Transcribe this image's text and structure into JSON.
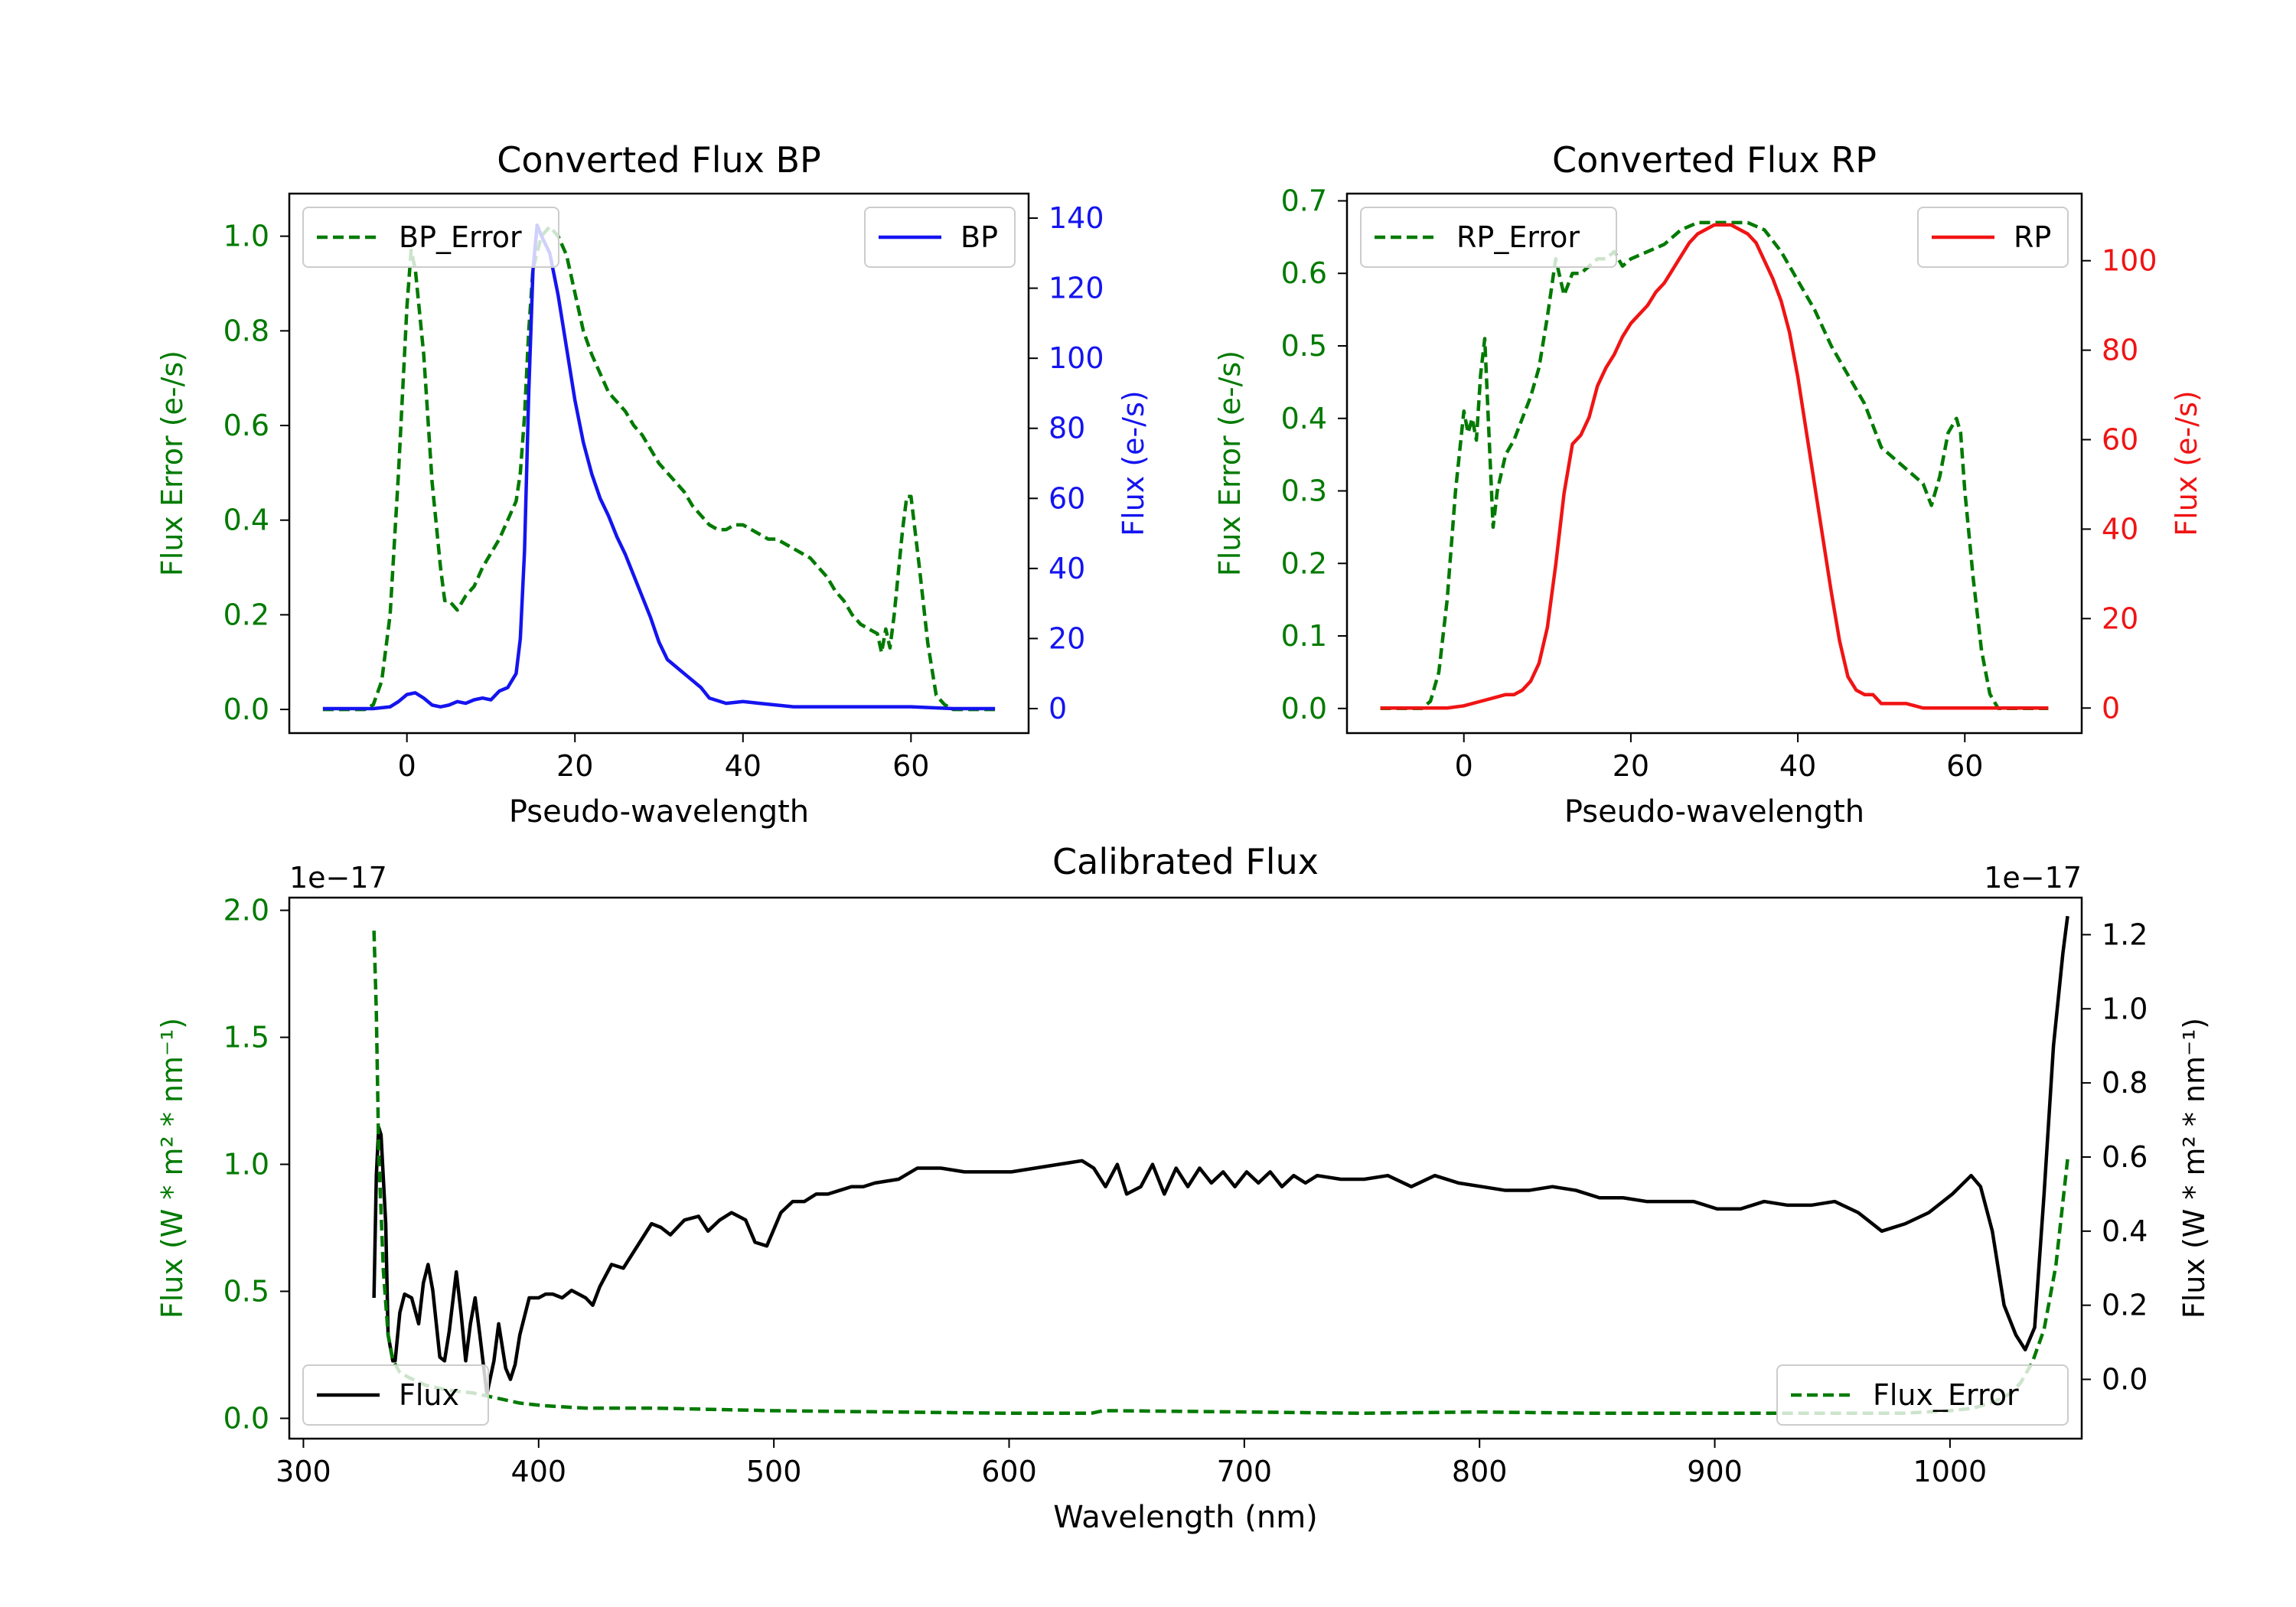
{
  "colors": {
    "green": "#007a00",
    "blue": "#1414f0",
    "red": "#f01414",
    "black": "#000000"
  },
  "chart_data": [
    {
      "id": "bp",
      "type": "line",
      "title": "Converted Flux BP",
      "xlabel": "Pseudo-wavelength",
      "xlim": [
        -14,
        74
      ],
      "xticks": [
        0,
        20,
        40,
        60
      ],
      "left_axis": {
        "label": "Flux Error (e-/s)",
        "color": "#007a00",
        "ylim": [
          -0.05,
          1.09
        ],
        "ticks": [
          0.0,
          0.2,
          0.4,
          0.6,
          0.8,
          1.0
        ],
        "tick_labels": [
          "0.0",
          "0.2",
          "0.4",
          "0.6",
          "0.8",
          "1.0"
        ]
      },
      "right_axis": {
        "label": "Flux (e-/s)",
        "color": "#1414f0",
        "ylim": [
          -7,
          147
        ],
        "ticks": [
          0,
          20,
          40,
          60,
          80,
          100,
          120,
          140
        ],
        "tick_labels": [
          "0",
          "20",
          "40",
          "60",
          "80",
          "100",
          "120",
          "140"
        ]
      },
      "series": [
        {
          "name": "BP_Error",
          "axis": "left",
          "style": "dashed",
          "color": "#007a00",
          "legend": "top-left",
          "x": [
            -10,
            -5,
            -4,
            -3,
            -2,
            -1,
            0,
            0.5,
            1,
            2,
            3,
            4,
            4.5,
            5,
            6,
            7,
            8,
            9,
            10,
            11,
            12,
            13,
            13.5,
            14,
            14.5,
            15,
            16,
            17,
            18,
            19,
            20,
            21,
            22,
            23,
            24,
            25,
            26,
            27,
            28,
            29,
            30,
            31,
            32,
            33,
            34,
            35,
            36,
            37,
            38,
            39,
            40,
            41,
            42,
            43,
            44,
            45,
            46,
            47,
            48,
            49,
            50,
            51,
            52,
            53,
            54,
            55,
            56,
            56.5,
            57,
            57.5,
            58,
            59,
            59.5,
            60,
            61,
            62,
            63,
            64,
            65,
            70
          ],
          "y": [
            0,
            0,
            0.01,
            0.06,
            0.2,
            0.5,
            0.85,
            0.97,
            0.93,
            0.75,
            0.48,
            0.3,
            0.23,
            0.23,
            0.21,
            0.24,
            0.26,
            0.3,
            0.33,
            0.36,
            0.4,
            0.44,
            0.5,
            0.62,
            0.8,
            0.93,
            1.0,
            1.02,
            1.0,
            0.96,
            0.88,
            0.8,
            0.75,
            0.71,
            0.67,
            0.65,
            0.63,
            0.6,
            0.58,
            0.55,
            0.52,
            0.5,
            0.48,
            0.46,
            0.43,
            0.41,
            0.39,
            0.38,
            0.38,
            0.39,
            0.39,
            0.38,
            0.37,
            0.36,
            0.36,
            0.35,
            0.34,
            0.33,
            0.32,
            0.3,
            0.28,
            0.25,
            0.23,
            0.2,
            0.18,
            0.17,
            0.16,
            0.12,
            0.17,
            0.13,
            0.2,
            0.38,
            0.45,
            0.45,
            0.3,
            0.14,
            0.03,
            0.01,
            0,
            0
          ]
        },
        {
          "name": "BP",
          "axis": "right",
          "style": "solid",
          "color": "#1414f0",
          "legend": "top-right",
          "x": [
            -10,
            -4,
            -2,
            -1,
            0,
            1,
            2,
            3,
            4,
            5,
            6,
            7,
            8,
            9,
            10,
            11,
            12,
            13,
            13.5,
            14,
            14.5,
            15,
            15.5,
            16,
            17,
            18,
            19,
            20,
            21,
            22,
            23,
            24,
            25,
            26,
            27,
            28,
            29,
            30,
            31,
            32,
            33,
            34,
            35,
            36,
            38,
            40,
            42,
            44,
            46,
            48,
            50,
            55,
            60,
            65,
            70
          ],
          "y": [
            0,
            0,
            0.5,
            2,
            4,
            4.5,
            3,
            1,
            0.5,
            1,
            2,
            1.5,
            2.5,
            3,
            2.5,
            5,
            6,
            10,
            20,
            45,
            90,
            125,
            138,
            135,
            130,
            118,
            103,
            88,
            76,
            67,
            60,
            55,
            49,
            44,
            38,
            32,
            26,
            19,
            14,
            12,
            10,
            8,
            6,
            3,
            1.5,
            2,
            1.5,
            1,
            0.5,
            0.5,
            0.5,
            0.5,
            0.5,
            0,
            0
          ]
        }
      ]
    },
    {
      "id": "rp",
      "type": "line",
      "title": "Converted Flux RP",
      "xlabel": "Pseudo-wavelength",
      "xlim": [
        -14,
        74
      ],
      "xticks": [
        0,
        20,
        40,
        60
      ],
      "left_axis": {
        "label": "Flux Error (e-/s)",
        "color": "#007a00",
        "ylim": [
          -0.034,
          0.71
        ],
        "ticks": [
          0.0,
          0.1,
          0.2,
          0.3,
          0.4,
          0.5,
          0.6,
          0.7
        ],
        "tick_labels": [
          "0.0",
          "0.1",
          "0.2",
          "0.3",
          "0.4",
          "0.5",
          "0.6",
          "0.7"
        ]
      },
      "right_axis": {
        "label": "Flux (e-/s)",
        "color": "#f01414",
        "ylim": [
          -5.6,
          115
        ],
        "ticks": [
          0,
          20,
          40,
          60,
          80,
          100
        ],
        "tick_labels": [
          "0",
          "20",
          "40",
          "60",
          "80",
          "100"
        ]
      },
      "series": [
        {
          "name": "RP_Error",
          "axis": "left",
          "style": "dashed",
          "color": "#007a00",
          "legend": "top-left",
          "x": [
            -10,
            -5,
            -4,
            -3,
            -2,
            -1,
            0,
            0.5,
            1,
            1.5,
            2,
            2.5,
            3,
            3.5,
            4,
            5,
            6,
            7,
            8,
            9,
            10,
            11,
            12,
            13,
            14,
            15,
            16,
            17,
            18,
            19,
            20,
            22,
            24,
            26,
            28,
            30,
            32,
            34,
            36,
            38,
            40,
            42,
            44,
            46,
            48,
            50,
            52,
            53,
            54,
            55,
            56,
            57,
            58,
            59,
            59.5,
            60,
            61,
            62,
            63,
            64,
            65,
            70
          ],
          "y": [
            0,
            0,
            0.01,
            0.05,
            0.15,
            0.3,
            0.41,
            0.38,
            0.4,
            0.37,
            0.46,
            0.51,
            0.38,
            0.25,
            0.3,
            0.35,
            0.37,
            0.4,
            0.43,
            0.47,
            0.54,
            0.62,
            0.57,
            0.6,
            0.6,
            0.61,
            0.62,
            0.62,
            0.63,
            0.61,
            0.62,
            0.63,
            0.64,
            0.66,
            0.67,
            0.67,
            0.67,
            0.67,
            0.66,
            0.63,
            0.59,
            0.55,
            0.5,
            0.46,
            0.42,
            0.36,
            0.34,
            0.33,
            0.32,
            0.31,
            0.28,
            0.32,
            0.38,
            0.4,
            0.38,
            0.3,
            0.18,
            0.08,
            0.02,
            0,
            0,
            0
          ]
        },
        {
          "name": "RP",
          "axis": "right",
          "style": "solid",
          "color": "#f01414",
          "legend": "top-right",
          "x": [
            -10,
            -2,
            0,
            2,
            4,
            5,
            6,
            7,
            8,
            9,
            10,
            11,
            12,
            13,
            14,
            15,
            16,
            17,
            18,
            19,
            20,
            21,
            22,
            23,
            24,
            25,
            26,
            27,
            28,
            29,
            30,
            31,
            32,
            33,
            34,
            35,
            36,
            37,
            38,
            39,
            40,
            41,
            42,
            43,
            44,
            45,
            46,
            47,
            48,
            49,
            50,
            51,
            52,
            53,
            54,
            55,
            56,
            57,
            58,
            59,
            60,
            62,
            65,
            70
          ],
          "y": [
            0,
            0,
            0.5,
            1.5,
            2.5,
            3,
            3,
            4,
            6,
            10,
            18,
            32,
            48,
            59,
            61,
            65,
            72,
            76,
            79,
            83,
            86,
            88,
            90,
            93,
            95,
            98,
            101,
            104,
            106,
            107,
            108,
            108,
            108,
            107,
            106,
            104,
            100,
            96,
            91,
            84,
            74,
            62,
            50,
            38,
            26,
            15,
            7,
            4,
            3,
            3,
            1,
            1,
            1,
            1,
            0.5,
            0,
            0,
            0,
            0,
            0,
            0,
            0,
            0,
            0
          ]
        }
      ]
    },
    {
      "id": "cal",
      "type": "line",
      "title": "Calibrated Flux",
      "xlabel": "Wavelength (nm)",
      "xlim": [
        294,
        1056
      ],
      "xticks": [
        300,
        400,
        500,
        600,
        700,
        800,
        900,
        1000
      ],
      "left_axis": {
        "label": "Flux (W * m² * nm⁻¹)",
        "offset_text": "1e−17",
        "color": "#007a00",
        "ylim": [
          -0.08,
          2.05
        ],
        "ticks": [
          0.0,
          0.5,
          1.0,
          1.5,
          2.0
        ],
        "tick_labels": [
          "0.0",
          "0.5",
          "1.0",
          "1.5",
          "2.0"
        ]
      },
      "right_axis": {
        "label": "Flux (W * m² * nm⁻¹)",
        "offset_text": "1e−17",
        "color": "#000000",
        "ylim": [
          -0.16,
          1.3
        ],
        "ticks": [
          0.0,
          0.2,
          0.4,
          0.6,
          0.8,
          1.0,
          1.2
        ],
        "tick_labels": [
          "0.0",
          "0.2",
          "0.4",
          "0.6",
          "0.8",
          "1.0",
          "1.2"
        ]
      },
      "series": [
        {
          "name": "Flux",
          "axis": "right",
          "style": "solid",
          "color": "#000000",
          "legend": "bottom-left",
          "x": [
            330,
            331,
            332,
            333,
            335,
            336,
            338,
            339,
            341,
            343,
            346,
            349,
            351,
            353,
            355,
            358,
            360,
            362,
            365,
            367,
            369,
            371,
            373,
            375,
            378,
            381,
            383,
            386,
            388,
            390,
            392,
            396,
            400,
            403,
            406,
            410,
            414,
            420,
            423,
            426,
            431,
            436,
            440,
            444,
            448,
            452,
            456,
            462,
            468,
            472,
            477,
            482,
            488,
            492,
            497,
            503,
            508,
            513,
            518,
            523,
            528,
            533,
            538,
            543,
            553,
            561,
            571,
            581,
            591,
            601,
            611,
            621,
            631,
            636,
            641,
            646,
            650,
            656,
            661,
            666,
            671,
            676,
            681,
            686,
            691,
            696,
            701,
            706,
            711,
            716,
            721,
            726,
            731,
            741,
            751,
            761,
            771,
            781,
            791,
            801,
            811,
            821,
            831,
            841,
            851,
            861,
            871,
            881,
            891,
            901,
            911,
            921,
            931,
            941,
            951,
            961,
            971,
            981,
            991,
            1001,
            1009,
            1013,
            1018,
            1023,
            1028,
            1032,
            1036,
            1040,
            1044,
            1048,
            1050
          ],
          "y": [
            0.22,
            0.55,
            0.68,
            0.66,
            0.42,
            0.12,
            0.05,
            0.05,
            0.18,
            0.23,
            0.22,
            0.15,
            0.26,
            0.31,
            0.24,
            0.06,
            0.05,
            0.13,
            0.29,
            0.18,
            0.05,
            0.15,
            0.22,
            0.12,
            -0.04,
            0.05,
            0.15,
            0.03,
            0.0,
            0.04,
            0.12,
            0.22,
            0.22,
            0.23,
            0.23,
            0.22,
            0.24,
            0.22,
            0.2,
            0.25,
            0.31,
            0.3,
            0.34,
            0.38,
            0.42,
            0.41,
            0.39,
            0.43,
            0.44,
            0.4,
            0.43,
            0.45,
            0.43,
            0.37,
            0.36,
            0.45,
            0.48,
            0.48,
            0.5,
            0.5,
            0.51,
            0.52,
            0.52,
            0.53,
            0.54,
            0.57,
            0.57,
            0.56,
            0.56,
            0.56,
            0.57,
            0.58,
            0.59,
            0.57,
            0.52,
            0.58,
            0.5,
            0.52,
            0.58,
            0.5,
            0.57,
            0.52,
            0.57,
            0.53,
            0.56,
            0.52,
            0.56,
            0.53,
            0.56,
            0.52,
            0.55,
            0.53,
            0.55,
            0.54,
            0.54,
            0.55,
            0.52,
            0.55,
            0.53,
            0.52,
            0.51,
            0.51,
            0.52,
            0.51,
            0.49,
            0.49,
            0.48,
            0.48,
            0.48,
            0.46,
            0.46,
            0.48,
            0.47,
            0.47,
            0.48,
            0.45,
            0.4,
            0.42,
            0.45,
            0.5,
            0.55,
            0.52,
            0.4,
            0.2,
            0.12,
            0.08,
            0.14,
            0.5,
            0.9,
            1.15,
            1.25
          ]
        },
        {
          "name": "Flux_Error",
          "axis": "left",
          "style": "dashed",
          "color": "#007a00",
          "legend": "bottom-right",
          "x": [
            330,
            331,
            332,
            334,
            336,
            338,
            341,
            345,
            352,
            362,
            372,
            382,
            392,
            402,
            420,
            450,
            500,
            550,
            600,
            635,
            640,
            645,
            700,
            750,
            800,
            850,
            900,
            950,
            980,
            1000,
            1010,
            1020,
            1026,
            1030,
            1035,
            1040,
            1045,
            1050
          ],
          "y": [
            1.92,
            1.6,
            1.05,
            0.58,
            0.33,
            0.23,
            0.18,
            0.16,
            0.13,
            0.11,
            0.1,
            0.08,
            0.06,
            0.05,
            0.04,
            0.04,
            0.03,
            0.025,
            0.02,
            0.02,
            0.03,
            0.03,
            0.025,
            0.02,
            0.025,
            0.02,
            0.02,
            0.02,
            0.02,
            0.03,
            0.04,
            0.07,
            0.1,
            0.14,
            0.22,
            0.35,
            0.6,
            1.02
          ]
        }
      ]
    }
  ]
}
